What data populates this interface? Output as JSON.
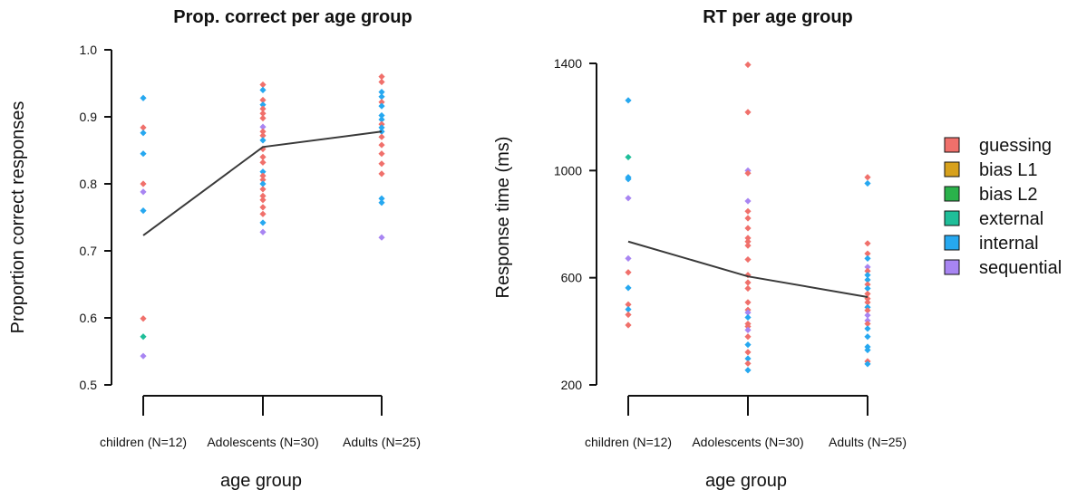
{
  "legend": {
    "items": [
      {
        "label": "guessing",
        "color": "#f0706b"
      },
      {
        "label": "bias L1",
        "color": "#d7a11c"
      },
      {
        "label": "bias L2",
        "color": "#2ab24b"
      },
      {
        "label": "external",
        "color": "#1fbe99"
      },
      {
        "label": "internal",
        "color": "#26a8f0"
      },
      {
        "label": "sequential",
        "color": "#a885f2"
      }
    ]
  },
  "chart_data": [
    {
      "type": "scatter",
      "title": "Prop. correct per age group",
      "xlabel": "age group",
      "ylabel": "Proportion correct responses",
      "categories": [
        "children (N=12)",
        "Adolescents (N=30)",
        "Adults (N=25)"
      ],
      "ylim": [
        0.5,
        1.0
      ],
      "yticks": [
        "0.5",
        "0.6",
        "0.7",
        "0.8",
        "0.9",
        "1.0"
      ],
      "grid": false,
      "mean_line": [
        0.723,
        0.855,
        0.878
      ],
      "points": [
        {
          "category": 0,
          "y": 0.928,
          "group": "internal"
        },
        {
          "category": 0,
          "y": 0.884,
          "group": "guessing"
        },
        {
          "category": 0,
          "y": 0.876,
          "group": "internal"
        },
        {
          "category": 0,
          "y": 0.845,
          "group": "internal"
        },
        {
          "category": 0,
          "y": 0.8,
          "group": "guessing"
        },
        {
          "category": 0,
          "y": 0.788,
          "group": "sequential"
        },
        {
          "category": 0,
          "y": 0.76,
          "group": "internal"
        },
        {
          "category": 0,
          "y": 0.599,
          "group": "guessing"
        },
        {
          "category": 0,
          "y": 0.572,
          "group": "external"
        },
        {
          "category": 0,
          "y": 0.543,
          "group": "sequential"
        },
        {
          "category": 1,
          "y": 0.948,
          "group": "guessing"
        },
        {
          "category": 1,
          "y": 0.94,
          "group": "internal"
        },
        {
          "category": 1,
          "y": 0.925,
          "group": "guessing"
        },
        {
          "category": 1,
          "y": 0.918,
          "group": "internal"
        },
        {
          "category": 1,
          "y": 0.912,
          "group": "guessing"
        },
        {
          "category": 1,
          "y": 0.905,
          "group": "guessing"
        },
        {
          "category": 1,
          "y": 0.898,
          "group": "guessing"
        },
        {
          "category": 1,
          "y": 0.885,
          "group": "sequential"
        },
        {
          "category": 1,
          "y": 0.878,
          "group": "guessing"
        },
        {
          "category": 1,
          "y": 0.872,
          "group": "guessing"
        },
        {
          "category": 1,
          "y": 0.865,
          "group": "internal"
        },
        {
          "category": 1,
          "y": 0.852,
          "group": "guessing"
        },
        {
          "category": 1,
          "y": 0.84,
          "group": "guessing"
        },
        {
          "category": 1,
          "y": 0.832,
          "group": "guessing"
        },
        {
          "category": 1,
          "y": 0.818,
          "group": "internal"
        },
        {
          "category": 1,
          "y": 0.812,
          "group": "guessing"
        },
        {
          "category": 1,
          "y": 0.806,
          "group": "guessing"
        },
        {
          "category": 1,
          "y": 0.8,
          "group": "internal"
        },
        {
          "category": 1,
          "y": 0.792,
          "group": "guessing"
        },
        {
          "category": 1,
          "y": 0.782,
          "group": "guessing"
        },
        {
          "category": 1,
          "y": 0.776,
          "group": "guessing"
        },
        {
          "category": 1,
          "y": 0.765,
          "group": "guessing"
        },
        {
          "category": 1,
          "y": 0.755,
          "group": "guessing"
        },
        {
          "category": 1,
          "y": 0.742,
          "group": "internal"
        },
        {
          "category": 1,
          "y": 0.728,
          "group": "sequential"
        },
        {
          "category": 2,
          "y": 0.96,
          "group": "guessing"
        },
        {
          "category": 2,
          "y": 0.952,
          "group": "guessing"
        },
        {
          "category": 2,
          "y": 0.937,
          "group": "internal"
        },
        {
          "category": 2,
          "y": 0.93,
          "group": "internal"
        },
        {
          "category": 2,
          "y": 0.922,
          "group": "guessing"
        },
        {
          "category": 2,
          "y": 0.916,
          "group": "internal"
        },
        {
          "category": 2,
          "y": 0.902,
          "group": "internal"
        },
        {
          "category": 2,
          "y": 0.896,
          "group": "internal"
        },
        {
          "category": 2,
          "y": 0.889,
          "group": "guessing"
        },
        {
          "category": 2,
          "y": 0.884,
          "group": "internal"
        },
        {
          "category": 2,
          "y": 0.878,
          "group": "internal"
        },
        {
          "category": 2,
          "y": 0.87,
          "group": "guessing"
        },
        {
          "category": 2,
          "y": 0.858,
          "group": "guessing"
        },
        {
          "category": 2,
          "y": 0.845,
          "group": "guessing"
        },
        {
          "category": 2,
          "y": 0.83,
          "group": "guessing"
        },
        {
          "category": 2,
          "y": 0.815,
          "group": "guessing"
        },
        {
          "category": 2,
          "y": 0.778,
          "group": "internal"
        },
        {
          "category": 2,
          "y": 0.772,
          "group": "internal"
        },
        {
          "category": 2,
          "y": 0.72,
          "group": "sequential"
        }
      ]
    },
    {
      "type": "scatter",
      "title": "RT per age group",
      "xlabel": "age group",
      "ylabel": "Response time (ms)",
      "categories": [
        "children (N=12)",
        "Adolescents (N=30)",
        "Adults (N=25)"
      ],
      "ylim": [
        200,
        1400
      ],
      "yticks": [
        "200",
        "600",
        "1000",
        "1400"
      ],
      "grid": false,
      "mean_line": [
        735,
        605,
        528
      ],
      "points": [
        {
          "category": 0,
          "y": 1262,
          "group": "internal"
        },
        {
          "category": 0,
          "y": 1050,
          "group": "external"
        },
        {
          "category": 0,
          "y": 975,
          "group": "internal"
        },
        {
          "category": 0,
          "y": 968,
          "group": "internal"
        },
        {
          "category": 0,
          "y": 897,
          "group": "sequential"
        },
        {
          "category": 0,
          "y": 672,
          "group": "sequential"
        },
        {
          "category": 0,
          "y": 620,
          "group": "guessing"
        },
        {
          "category": 0,
          "y": 562,
          "group": "internal"
        },
        {
          "category": 0,
          "y": 500,
          "group": "guessing"
        },
        {
          "category": 0,
          "y": 482,
          "group": "internal"
        },
        {
          "category": 0,
          "y": 462,
          "group": "guessing"
        },
        {
          "category": 0,
          "y": 423,
          "group": "guessing"
        },
        {
          "category": 1,
          "y": 1395,
          "group": "guessing"
        },
        {
          "category": 1,
          "y": 1218,
          "group": "guessing"
        },
        {
          "category": 1,
          "y": 1000,
          "group": "sequential"
        },
        {
          "category": 1,
          "y": 990,
          "group": "guessing"
        },
        {
          "category": 1,
          "y": 886,
          "group": "sequential"
        },
        {
          "category": 1,
          "y": 848,
          "group": "guessing"
        },
        {
          "category": 1,
          "y": 822,
          "group": "guessing"
        },
        {
          "category": 1,
          "y": 785,
          "group": "guessing"
        },
        {
          "category": 1,
          "y": 748,
          "group": "guessing"
        },
        {
          "category": 1,
          "y": 735,
          "group": "guessing"
        },
        {
          "category": 1,
          "y": 720,
          "group": "guessing"
        },
        {
          "category": 1,
          "y": 668,
          "group": "guessing"
        },
        {
          "category": 1,
          "y": 610,
          "group": "guessing"
        },
        {
          "category": 1,
          "y": 582,
          "group": "guessing"
        },
        {
          "category": 1,
          "y": 560,
          "group": "guessing"
        },
        {
          "category": 1,
          "y": 508,
          "group": "guessing"
        },
        {
          "category": 1,
          "y": 480,
          "group": "guessing"
        },
        {
          "category": 1,
          "y": 470,
          "group": "sequential"
        },
        {
          "category": 1,
          "y": 452,
          "group": "internal"
        },
        {
          "category": 1,
          "y": 428,
          "group": "guessing"
        },
        {
          "category": 1,
          "y": 418,
          "group": "guessing"
        },
        {
          "category": 1,
          "y": 405,
          "group": "sequential"
        },
        {
          "category": 1,
          "y": 380,
          "group": "guessing"
        },
        {
          "category": 1,
          "y": 350,
          "group": "internal"
        },
        {
          "category": 1,
          "y": 322,
          "group": "guessing"
        },
        {
          "category": 1,
          "y": 298,
          "group": "internal"
        },
        {
          "category": 1,
          "y": 280,
          "group": "guessing"
        },
        {
          "category": 1,
          "y": 255,
          "group": "internal"
        },
        {
          "category": 2,
          "y": 975,
          "group": "guessing"
        },
        {
          "category": 2,
          "y": 952,
          "group": "internal"
        },
        {
          "category": 2,
          "y": 728,
          "group": "guessing"
        },
        {
          "category": 2,
          "y": 690,
          "group": "guessing"
        },
        {
          "category": 2,
          "y": 672,
          "group": "internal"
        },
        {
          "category": 2,
          "y": 640,
          "group": "sequential"
        },
        {
          "category": 2,
          "y": 625,
          "group": "guessing"
        },
        {
          "category": 2,
          "y": 610,
          "group": "internal"
        },
        {
          "category": 2,
          "y": 592,
          "group": "internal"
        },
        {
          "category": 2,
          "y": 575,
          "group": "guessing"
        },
        {
          "category": 2,
          "y": 560,
          "group": "internal"
        },
        {
          "category": 2,
          "y": 540,
          "group": "guessing"
        },
        {
          "category": 2,
          "y": 522,
          "group": "guessing"
        },
        {
          "category": 2,
          "y": 508,
          "group": "guessing"
        },
        {
          "category": 2,
          "y": 490,
          "group": "internal"
        },
        {
          "category": 2,
          "y": 478,
          "group": "guessing"
        },
        {
          "category": 2,
          "y": 460,
          "group": "sequential"
        },
        {
          "category": 2,
          "y": 440,
          "group": "sequential"
        },
        {
          "category": 2,
          "y": 428,
          "group": "guessing"
        },
        {
          "category": 2,
          "y": 410,
          "group": "internal"
        },
        {
          "category": 2,
          "y": 380,
          "group": "internal"
        },
        {
          "category": 2,
          "y": 342,
          "group": "internal"
        },
        {
          "category": 2,
          "y": 330,
          "group": "internal"
        },
        {
          "category": 2,
          "y": 288,
          "group": "guessing"
        },
        {
          "category": 2,
          "y": 278,
          "group": "internal"
        }
      ]
    }
  ]
}
